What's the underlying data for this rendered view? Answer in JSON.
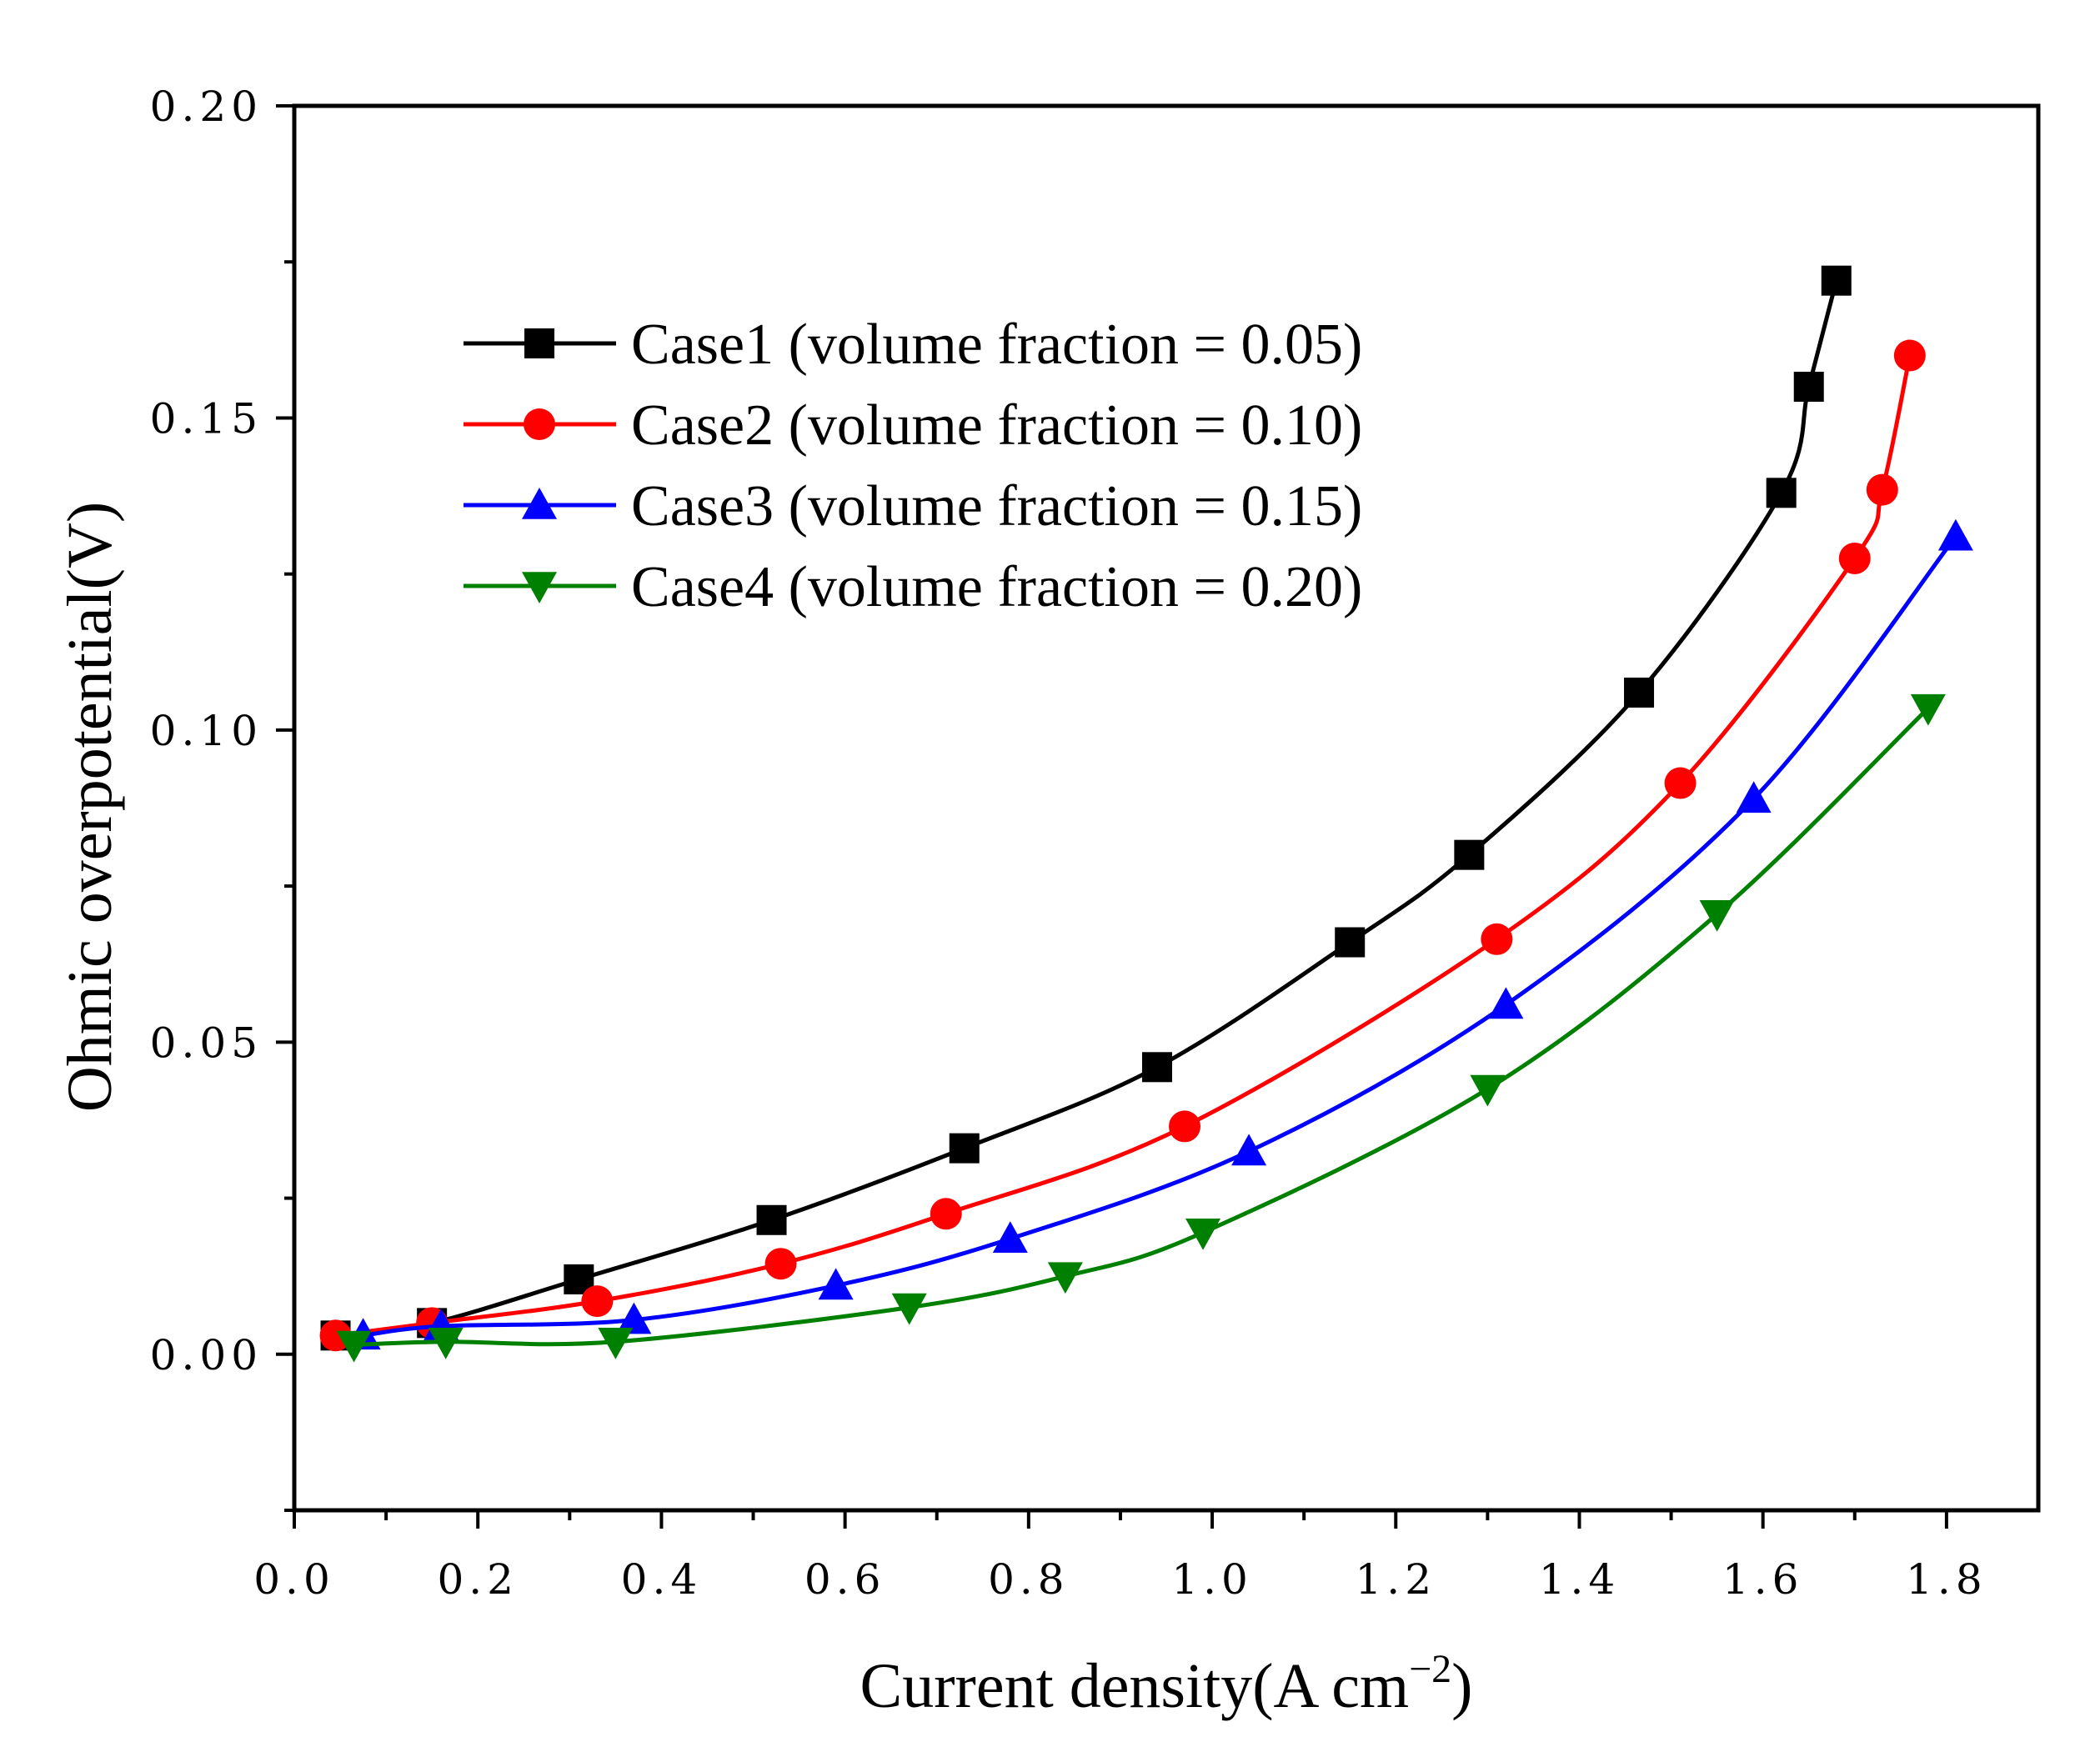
{
  "chart_data": {
    "type": "line",
    "title": "",
    "xlabel": "Current density(A cm",
    "xlabel_sup": "−2",
    "xlabel_suffix": ")",
    "ylabel": "Ohmic overpotential(V)",
    "xlim": [
      0.0,
      1.9
    ],
    "ylim": [
      -0.025,
      0.2
    ],
    "x_ticks": [
      0.0,
      0.2,
      0.4,
      0.6,
      0.8,
      1.0,
      1.2,
      1.4,
      1.6,
      1.8
    ],
    "x_tick_labels": [
      "0.0",
      "0.2",
      "0.4",
      "0.6",
      "0.8",
      "1.0",
      "1.2",
      "1.4",
      "1.6",
      "1.8"
    ],
    "y_ticks": [
      0.0,
      0.05,
      0.1,
      0.15,
      0.2
    ],
    "y_tick_labels": [
      "0.00",
      "0.05",
      "0.10",
      "0.15",
      "0.20"
    ],
    "legend_position": "top-left",
    "series": [
      {
        "name": "Case1 (volume fraction = 0.05)",
        "color": "#000000",
        "marker": "square",
        "x": [
          0.045,
          0.15,
          0.31,
          0.52,
          0.73,
          0.94,
          1.15,
          1.28,
          1.465,
          1.62,
          1.65,
          1.68
        ],
        "y": [
          0.003,
          0.005,
          0.012,
          0.0215,
          0.033,
          0.046,
          0.066,
          0.08,
          0.106,
          0.138,
          0.155,
          0.172
        ]
      },
      {
        "name": "Case2 (volume fraction = 0.10)",
        "color": "#ff0000",
        "marker": "circle",
        "x": [
          0.045,
          0.15,
          0.33,
          0.53,
          0.71,
          0.97,
          1.31,
          1.51,
          1.7,
          1.73,
          1.76
        ],
        "y": [
          0.003,
          0.005,
          0.0085,
          0.0145,
          0.0225,
          0.0365,
          0.0665,
          0.0915,
          0.1275,
          0.1385,
          0.16
        ]
      },
      {
        "name": "Case3 (volume fraction = 0.15)",
        "color": "#0000ff",
        "marker": "triangle-up",
        "x": [
          0.075,
          0.16,
          0.37,
          0.59,
          0.78,
          1.04,
          1.32,
          1.59,
          1.81
        ],
        "y": [
          0.003,
          0.0045,
          0.0055,
          0.011,
          0.0185,
          0.0325,
          0.056,
          0.089,
          0.131
        ]
      },
      {
        "name": "Case4 (volume fraction = 0.20)",
        "color": "#008000",
        "marker": "triangle-down",
        "x": [
          0.065,
          0.165,
          0.35,
          0.67,
          0.84,
          0.99,
          1.3,
          1.55,
          1.78
        ],
        "y": [
          0.0015,
          0.002,
          0.002,
          0.0075,
          0.0125,
          0.0195,
          0.0425,
          0.0705,
          0.1035
        ]
      }
    ]
  }
}
